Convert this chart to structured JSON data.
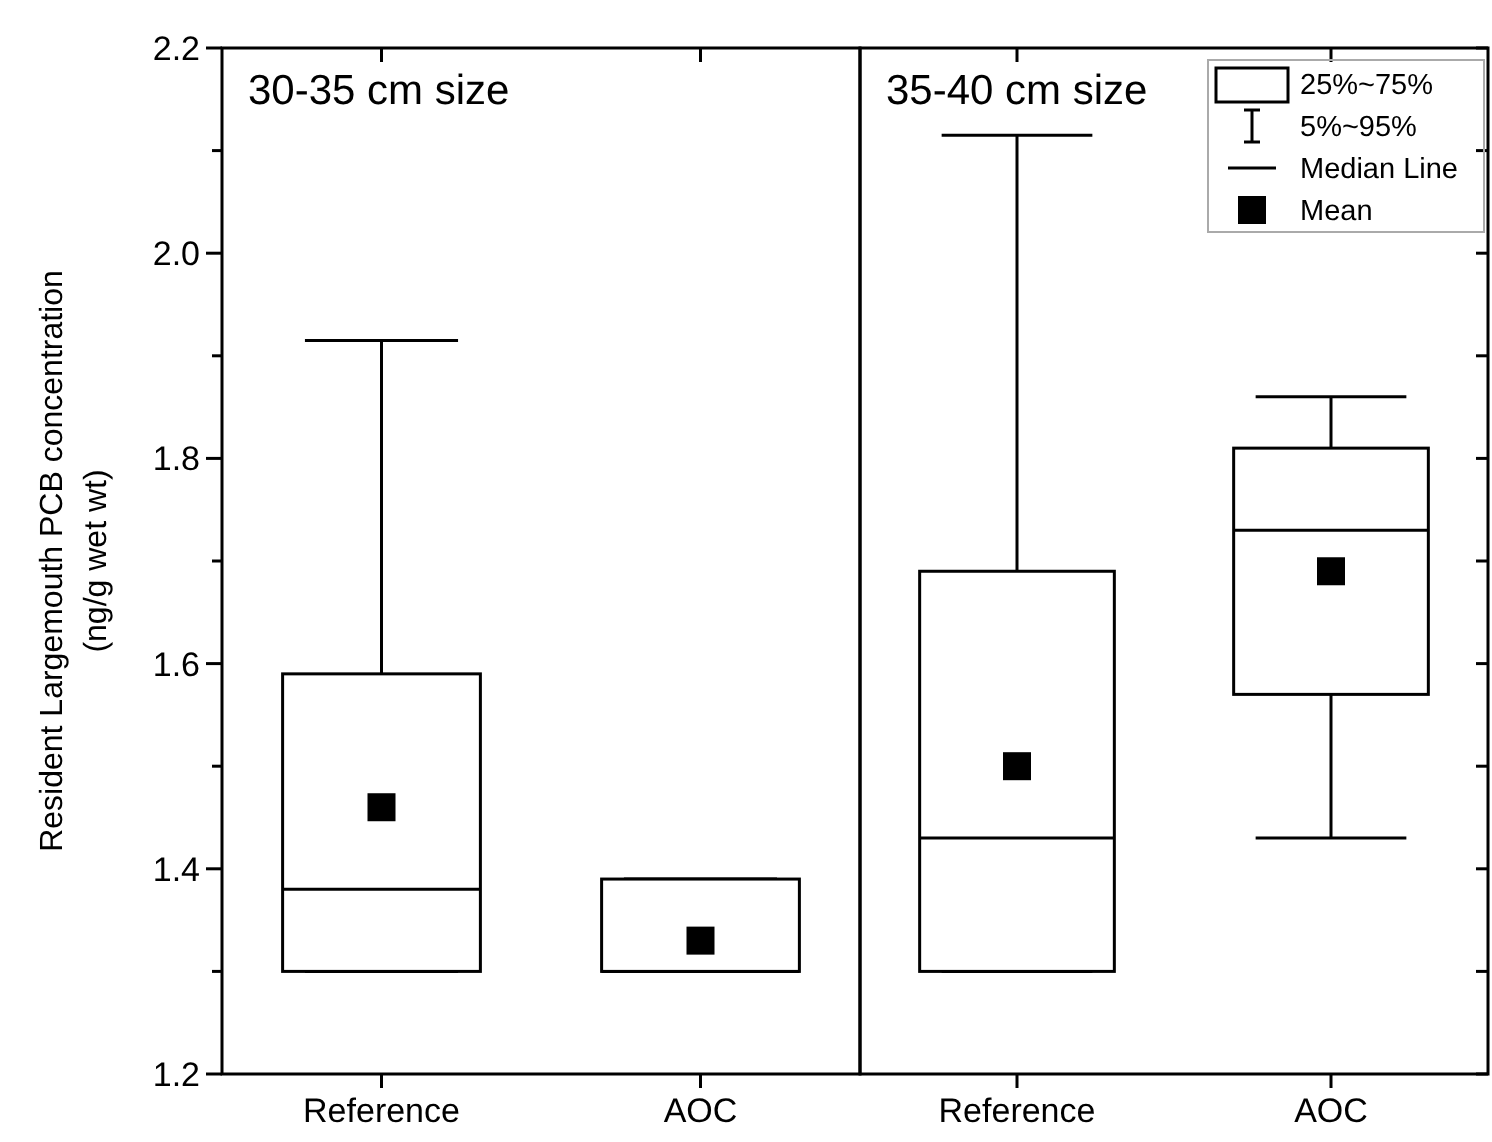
{
  "chart_data": [
    {
      "type": "box",
      "title": "30-35 cm size",
      "ylabel": "Resident Largemouth PCB concentration\n(ng/g wet wt)",
      "categories": [
        "Reference",
        "AOC"
      ],
      "boxes": [
        {
          "low": 1.3,
          "q1": 1.3,
          "median": 1.38,
          "q3": 1.59,
          "high": 1.915,
          "mean": 1.46
        },
        {
          "low": 1.3,
          "q1": 1.3,
          "median": 1.3,
          "q3": 1.39,
          "high": 1.39,
          "mean": 1.33
        }
      ],
      "ylim": [
        1.2,
        2.2
      ],
      "yticks": [
        {
          "value": 1.2,
          "label": "1.2"
        },
        {
          "value": 1.3,
          "label": null
        },
        {
          "value": 1.4,
          "label": "1.4"
        },
        {
          "value": 1.5,
          "label": null
        },
        {
          "value": 1.6,
          "label": "1.6"
        },
        {
          "value": 1.7,
          "label": null
        },
        {
          "value": 1.8,
          "label": "1.8"
        },
        {
          "value": 1.9,
          "label": null
        },
        {
          "value": 2.0,
          "label": "2.0"
        },
        {
          "value": 2.1,
          "label": null
        },
        {
          "value": 2.2,
          "label": "2.2"
        }
      ]
    },
    {
      "type": "box",
      "title": "35-40 cm size",
      "categories": [
        "Reference",
        "AOC"
      ],
      "boxes": [
        {
          "low": 1.3,
          "q1": 1.3,
          "median": 1.43,
          "q3": 1.69,
          "high": 2.115,
          "mean": 1.5
        },
        {
          "low": 1.43,
          "q1": 1.57,
          "median": 1.73,
          "q3": 1.81,
          "high": 1.86,
          "mean": 1.69
        }
      ],
      "ylim": [
        1.2,
        2.2
      ],
      "yticks": [
        {
          "value": 1.2,
          "label": null
        },
        {
          "value": 1.3,
          "label": null
        },
        {
          "value": 1.4,
          "label": null
        },
        {
          "value": 1.5,
          "label": null
        },
        {
          "value": 1.6,
          "label": null
        },
        {
          "value": 1.7,
          "label": null
        },
        {
          "value": 1.8,
          "label": null
        },
        {
          "value": 1.9,
          "label": null
        },
        {
          "value": 2.0,
          "label": null
        },
        {
          "value": 2.1,
          "label": null
        },
        {
          "value": 2.2,
          "label": null
        }
      ],
      "tick_labels": "x",
      "annotations": [
        "25%~75%",
        "5%~95%",
        "Median Line",
        "Mean"
      ]
    }
  ]
}
